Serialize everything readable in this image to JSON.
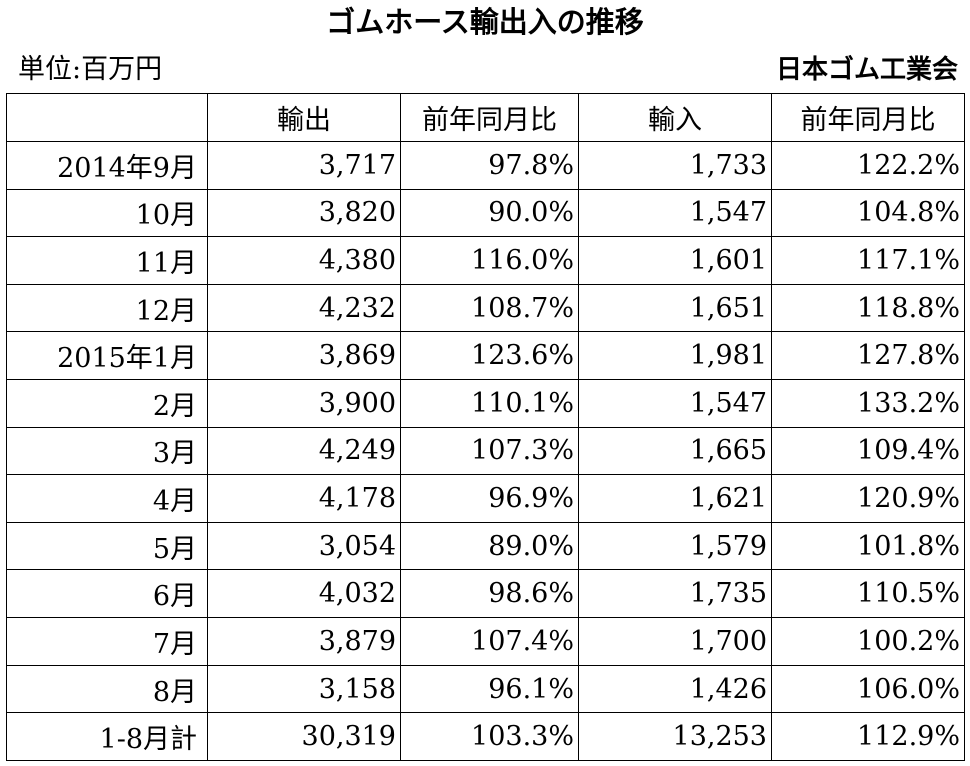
{
  "title": "ゴムホース輸出入の推移",
  "unit_label": "単位:百万円",
  "source": "日本ゴム工業会",
  "chart_data": {
    "type": "table",
    "title": "ゴムホース輸出入の推移",
    "columns": [
      "",
      "輸出",
      "前年同月比",
      "輸入",
      "前年同月比"
    ],
    "rows": [
      {
        "period": "2014年9月",
        "export": "3,717",
        "export_yoy": "97.8%",
        "import": "1,733",
        "import_yoy": "122.2%"
      },
      {
        "period": "10月",
        "export": "3,820",
        "export_yoy": "90.0%",
        "import": "1,547",
        "import_yoy": "104.8%"
      },
      {
        "period": "11月",
        "export": "4,380",
        "export_yoy": "116.0%",
        "import": "1,601",
        "import_yoy": "117.1%"
      },
      {
        "period": "12月",
        "export": "4,232",
        "export_yoy": "108.7%",
        "import": "1,651",
        "import_yoy": "118.8%"
      },
      {
        "period": "2015年1月",
        "export": "3,869",
        "export_yoy": "123.6%",
        "import": "1,981",
        "import_yoy": "127.8%"
      },
      {
        "period": "2月",
        "export": "3,900",
        "export_yoy": "110.1%",
        "import": "1,547",
        "import_yoy": "133.2%"
      },
      {
        "period": "3月",
        "export": "4,249",
        "export_yoy": "107.3%",
        "import": "1,665",
        "import_yoy": "109.4%"
      },
      {
        "period": "4月",
        "export": "4,178",
        "export_yoy": "96.9%",
        "import": "1,621",
        "import_yoy": "120.9%"
      },
      {
        "period": "5月",
        "export": "3,054",
        "export_yoy": "89.0%",
        "import": "1,579",
        "import_yoy": "101.8%"
      },
      {
        "period": "6月",
        "export": "4,032",
        "export_yoy": "98.6%",
        "import": "1,735",
        "import_yoy": "110.5%"
      },
      {
        "period": "7月",
        "export": "3,879",
        "export_yoy": "107.4%",
        "import": "1,700",
        "import_yoy": "100.2%"
      },
      {
        "period": "8月",
        "export": "3,158",
        "export_yoy": "96.1%",
        "import": "1,426",
        "import_yoy": "106.0%"
      },
      {
        "period": "1-8月計",
        "export": "30,319",
        "export_yoy": "103.3%",
        "import": "13,253",
        "import_yoy": "112.9%"
      }
    ]
  }
}
